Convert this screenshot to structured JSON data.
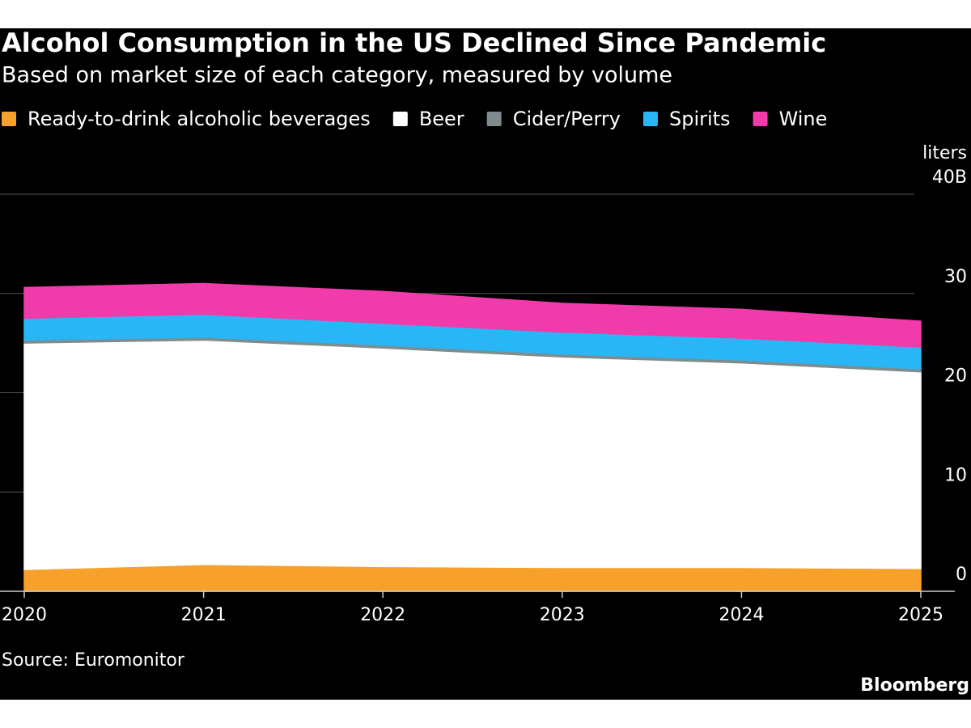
{
  "chart_data": {
    "type": "stacked-area",
    "title": "Alcohol Consumption in the US Declined Since Pandemic",
    "subtitle": "Based on market size of each category, measured by volume",
    "y_label": "liters",
    "source": "Source: Euromonitor",
    "brand": "Bloomberg",
    "x": [
      2020,
      2021,
      2022,
      2023,
      2024,
      2025
    ],
    "xlim": [
      2020,
      2025
    ],
    "xticks": [
      2020,
      2021,
      2022,
      2023,
      2024,
      2025
    ],
    "ylim": [
      0,
      40
    ],
    "yticks": [
      0,
      10,
      20,
      30,
      {
        "value": 40,
        "label": "40B"
      }
    ],
    "grid": true,
    "series": [
      {
        "name": "Ready-to-drink alcoholic beverages",
        "color": "#f7a12a",
        "values": [
          2.2,
          2.7,
          2.5,
          2.4,
          2.4,
          2.3
        ]
      },
      {
        "name": "Beer",
        "color": "#ffffff",
        "values": [
          22.8,
          22.6,
          22.0,
          21.2,
          20.6,
          19.8
        ]
      },
      {
        "name": "Cider/Perry",
        "color": "#7f8c8d",
        "values": [
          0.3,
          0.3,
          0.3,
          0.3,
          0.3,
          0.3
        ]
      },
      {
        "name": "Spirits",
        "color": "#29b6f6",
        "values": [
          2.2,
          2.3,
          2.2,
          2.2,
          2.2,
          2.2
        ]
      },
      {
        "name": "Wine",
        "color": "#f23bab",
        "values": [
          3.1,
          3.1,
          3.2,
          2.9,
          2.9,
          2.6
        ]
      }
    ]
  }
}
